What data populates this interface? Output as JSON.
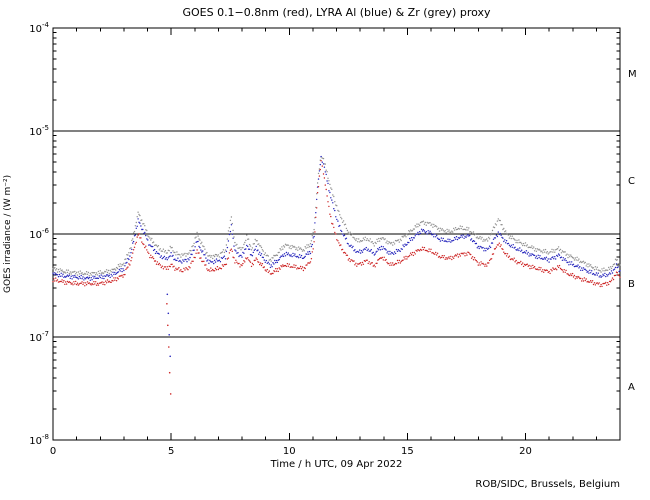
{
  "chart_data": {
    "type": "scatter",
    "title": "GOES 0.1−0.8nm (red), LYRA Al (blue) & Zr (grey) proxy",
    "xlabel": "Time / h UTC, 09 Apr 2022",
    "ylabel": "GOES irradiance / (W m⁻²)",
    "credit": "ROB/SIDC, Brussels, Belgium",
    "xlim": [
      0,
      24
    ],
    "ylim_log10": [
      -8,
      -4
    ],
    "x_ticks": [
      0,
      5,
      10,
      15,
      20
    ],
    "y_tick_exponents": [
      -8,
      -7,
      -6,
      -5,
      -4
    ],
    "hlines_log10": [
      -5,
      -6,
      -7
    ],
    "grid": "off",
    "legend_position": "none (encoded in title)",
    "class_labels": [
      {
        "label": "M",
        "log10_mid": -4.5
      },
      {
        "label": "C",
        "log10_mid": -5.5
      },
      {
        "label": "B",
        "log10_mid": -6.5
      },
      {
        "label": "A",
        "log10_mid": -7.5
      }
    ],
    "series": [
      {
        "name": "Zr proxy",
        "color": "#909090",
        "points": [
          [
            0,
            4.6e-07
          ],
          [
            0.5,
            4.3e-07
          ],
          [
            1,
            4.2e-07
          ],
          [
            1.5,
            4.1e-07
          ],
          [
            2,
            4.2e-07
          ],
          [
            2.5,
            4.4e-07
          ],
          [
            3,
            5.2e-07
          ],
          [
            3.3,
            7.5e-07
          ],
          [
            3.6,
            1.6e-06
          ],
          [
            3.8,
            1.3e-06
          ],
          [
            4.1,
            9e-07
          ],
          [
            4.5,
            7.2e-07
          ],
          [
            4.8,
            6.6e-07
          ],
          [
            5.0,
            7.4e-07
          ],
          [
            5.2,
            6.4e-07
          ],
          [
            5.5,
            6.2e-07
          ],
          [
            5.8,
            6.6e-07
          ],
          [
            6.1,
            1e-06
          ],
          [
            6.3,
            8e-07
          ],
          [
            6.6,
            6e-07
          ],
          [
            7.0,
            6.2e-07
          ],
          [
            7.3,
            7e-07
          ],
          [
            7.55,
            1.5e-06
          ],
          [
            7.7,
            8e-07
          ],
          [
            8.0,
            7e-07
          ],
          [
            8.2,
            9.5e-07
          ],
          [
            8.4,
            7.2e-07
          ],
          [
            8.6,
            8.8e-07
          ],
          [
            8.9,
            6.8e-07
          ],
          [
            9.2,
            5.6e-07
          ],
          [
            9.5,
            6.4e-07
          ],
          [
            9.8,
            7.8e-07
          ],
          [
            10.2,
            7.4e-07
          ],
          [
            10.6,
            7e-07
          ],
          [
            10.9,
            8e-07
          ],
          [
            11.05,
            1.1e-06
          ],
          [
            11.2,
            3.2e-06
          ],
          [
            11.35,
            5.8e-06
          ],
          [
            11.45,
            5.3e-06
          ],
          [
            11.6,
            3.9e-06
          ],
          [
            11.8,
            2.6e-06
          ],
          [
            12.1,
            1.6e-06
          ],
          [
            12.5,
            1.05e-06
          ],
          [
            12.9,
            8.5e-07
          ],
          [
            13.3,
            9e-07
          ],
          [
            13.6,
            8e-07
          ],
          [
            13.9,
            9.2e-07
          ],
          [
            14.3,
            8e-07
          ],
          [
            14.7,
            8.8e-07
          ],
          [
            15.1,
            1.05e-06
          ],
          [
            15.6,
            1.3e-06
          ],
          [
            16.0,
            1.25e-06
          ],
          [
            16.4,
            1.1e-06
          ],
          [
            16.8,
            1.05e-06
          ],
          [
            17.2,
            1.15e-06
          ],
          [
            17.6,
            1.1e-06
          ],
          [
            18.0,
            9.2e-07
          ],
          [
            18.4,
            8.6e-07
          ],
          [
            18.85,
            1.4e-06
          ],
          [
            19.2,
            1e-06
          ],
          [
            19.6,
            8.6e-07
          ],
          [
            20.0,
            7.8e-07
          ],
          [
            20.5,
            7e-07
          ],
          [
            21.0,
            6.6e-07
          ],
          [
            21.4,
            7.2e-07
          ],
          [
            21.8,
            6.2e-07
          ],
          [
            22.3,
            5.5e-07
          ],
          [
            22.8,
            4.8e-07
          ],
          [
            23.2,
            4.4e-07
          ],
          [
            23.6,
            4.6e-07
          ],
          [
            23.85,
            5.6e-07
          ],
          [
            24,
            5e-07
          ]
        ],
        "outliers": []
      },
      {
        "name": "Al proxy",
        "color": "#2222bb",
        "points": [
          [
            0,
            4.1e-07
          ],
          [
            0.5,
            3.9e-07
          ],
          [
            1,
            3.8e-07
          ],
          [
            1.5,
            3.7e-07
          ],
          [
            2,
            3.8e-07
          ],
          [
            2.5,
            4e-07
          ],
          [
            3,
            4.6e-07
          ],
          [
            3.3,
            6.5e-07
          ],
          [
            3.6,
            1.35e-06
          ],
          [
            3.8,
            1.1e-06
          ],
          [
            4.1,
            7.8e-07
          ],
          [
            4.5,
            6.2e-07
          ],
          [
            4.8,
            5.7e-07
          ],
          [
            5.0,
            6.3e-07
          ],
          [
            5.2,
            5.6e-07
          ],
          [
            5.5,
            5.4e-07
          ],
          [
            5.8,
            5.8e-07
          ],
          [
            6.1,
            8.5e-07
          ],
          [
            6.3,
            6.8e-07
          ],
          [
            6.6,
            5.3e-07
          ],
          [
            7.0,
            5.5e-07
          ],
          [
            7.3,
            6e-07
          ],
          [
            7.55,
            1.2e-06
          ],
          [
            7.7,
            6.8e-07
          ],
          [
            8.0,
            6e-07
          ],
          [
            8.2,
            7.8e-07
          ],
          [
            8.4,
            6.2e-07
          ],
          [
            8.6,
            7.3e-07
          ],
          [
            8.9,
            5.8e-07
          ],
          [
            9.2,
            4.9e-07
          ],
          [
            9.5,
            5.5e-07
          ],
          [
            9.8,
            6.4e-07
          ],
          [
            10.2,
            6.2e-07
          ],
          [
            10.6,
            5.9e-07
          ],
          [
            10.9,
            6.8e-07
          ],
          [
            11.05,
            9.5e-07
          ],
          [
            11.2,
            2.9e-06
          ],
          [
            11.35,
            5.5e-06
          ],
          [
            11.45,
            4.9e-06
          ],
          [
            11.6,
            3.3e-06
          ],
          [
            11.8,
            2.1e-06
          ],
          [
            12.1,
            1.2e-06
          ],
          [
            12.5,
            8e-07
          ],
          [
            12.9,
            6.6e-07
          ],
          [
            13.3,
            7.2e-07
          ],
          [
            13.6,
            6.4e-07
          ],
          [
            13.9,
            7.5e-07
          ],
          [
            14.3,
            6.4e-07
          ],
          [
            14.7,
            7e-07
          ],
          [
            15.1,
            8.6e-07
          ],
          [
            15.6,
            1.08e-06
          ],
          [
            16.0,
            1.02e-06
          ],
          [
            16.4,
            8.8e-07
          ],
          [
            16.8,
            8.5e-07
          ],
          [
            17.2,
            9.3e-07
          ],
          [
            17.6,
            9.6e-07
          ],
          [
            18.0,
            7.5e-07
          ],
          [
            18.4,
            7e-07
          ],
          [
            18.85,
            1.03e-06
          ],
          [
            19.2,
            8.2e-07
          ],
          [
            19.6,
            7.2e-07
          ],
          [
            20.0,
            6.6e-07
          ],
          [
            20.5,
            6e-07
          ],
          [
            21.0,
            5.6e-07
          ],
          [
            21.4,
            6.2e-07
          ],
          [
            21.8,
            5.3e-07
          ],
          [
            22.3,
            4.7e-07
          ],
          [
            22.8,
            4.2e-07
          ],
          [
            23.2,
            3.9e-07
          ],
          [
            23.6,
            4.1e-07
          ],
          [
            23.85,
            4.9e-07
          ],
          [
            24,
            4.4e-07
          ]
        ],
        "outliers": [
          [
            4.84,
            2.6e-07
          ],
          [
            4.88,
            1.7e-07
          ],
          [
            4.92,
            1.05e-07
          ],
          [
            4.96,
            6.5e-08
          ]
        ]
      },
      {
        "name": "GOES 0.1-0.8nm",
        "color": "#cc2222",
        "points": [
          [
            0,
            3.6e-07
          ],
          [
            0.5,
            3.4e-07
          ],
          [
            1,
            3.3e-07
          ],
          [
            1.5,
            3.3e-07
          ],
          [
            2,
            3.3e-07
          ],
          [
            2.5,
            3.5e-07
          ],
          [
            3,
            4e-07
          ],
          [
            3.3,
            5.5e-07
          ],
          [
            3.6,
            1e-06
          ],
          [
            3.8,
            8.2e-07
          ],
          [
            4.1,
            6.2e-07
          ],
          [
            4.5,
            5e-07
          ],
          [
            4.8,
            4.6e-07
          ],
          [
            5.0,
            5e-07
          ],
          [
            5.2,
            4.6e-07
          ],
          [
            5.5,
            4.4e-07
          ],
          [
            5.8,
            4.8e-07
          ],
          [
            6.1,
            6.8e-07
          ],
          [
            6.3,
            5.6e-07
          ],
          [
            6.6,
            4.4e-07
          ],
          [
            7.0,
            4.6e-07
          ],
          [
            7.3,
            5e-07
          ],
          [
            7.55,
            7.2e-07
          ],
          [
            7.7,
            5.4e-07
          ],
          [
            8.0,
            4.9e-07
          ],
          [
            8.2,
            6e-07
          ],
          [
            8.4,
            5e-07
          ],
          [
            8.6,
            5.7e-07
          ],
          [
            8.9,
            4.8e-07
          ],
          [
            9.2,
            4.1e-07
          ],
          [
            9.5,
            4.5e-07
          ],
          [
            9.8,
            5e-07
          ],
          [
            10.2,
            4.8e-07
          ],
          [
            10.6,
            4.6e-07
          ],
          [
            10.9,
            5.4e-07
          ],
          [
            11.05,
            8e-07
          ],
          [
            11.2,
            2.5e-06
          ],
          [
            11.35,
            5e-06
          ],
          [
            11.45,
            4e-06
          ],
          [
            11.6,
            2.3e-06
          ],
          [
            11.8,
            1.3e-06
          ],
          [
            12.1,
            8e-07
          ],
          [
            12.5,
            5.8e-07
          ],
          [
            12.9,
            5e-07
          ],
          [
            13.3,
            5.5e-07
          ],
          [
            13.6,
            4.9e-07
          ],
          [
            13.9,
            6e-07
          ],
          [
            14.3,
            5e-07
          ],
          [
            14.7,
            5.4e-07
          ],
          [
            15.1,
            6.2e-07
          ],
          [
            15.6,
            7.2e-07
          ],
          [
            16.0,
            6.8e-07
          ],
          [
            16.4,
            6e-07
          ],
          [
            16.8,
            5.8e-07
          ],
          [
            17.2,
            6.3e-07
          ],
          [
            17.6,
            6.5e-07
          ],
          [
            18.0,
            5.2e-07
          ],
          [
            18.4,
            5e-07
          ],
          [
            18.85,
            8.2e-07
          ],
          [
            19.2,
            6.2e-07
          ],
          [
            19.6,
            5.4e-07
          ],
          [
            20.0,
            5e-07
          ],
          [
            20.5,
            4.6e-07
          ],
          [
            21.0,
            4.3e-07
          ],
          [
            21.4,
            4.8e-07
          ],
          [
            21.8,
            4.1e-07
          ],
          [
            22.3,
            3.7e-07
          ],
          [
            22.8,
            3.4e-07
          ],
          [
            23.2,
            3.2e-07
          ],
          [
            23.6,
            3.4e-07
          ],
          [
            23.85,
            4.2e-07
          ],
          [
            24,
            3.8e-07
          ]
        ],
        "outliers": [
          [
            4.82,
            2.1e-07
          ],
          [
            4.86,
            1.3e-07
          ],
          [
            4.9,
            8e-08
          ],
          [
            4.94,
            4.5e-08
          ],
          [
            4.98,
            2.8e-08
          ]
        ]
      }
    ]
  }
}
